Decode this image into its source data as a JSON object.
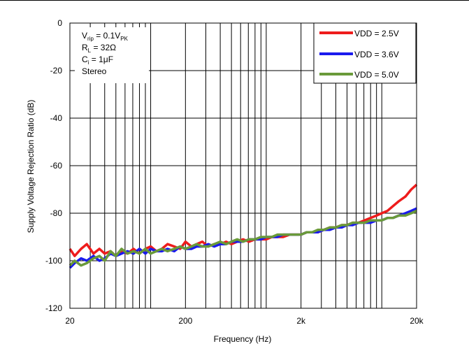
{
  "chart_data": {
    "type": "line",
    "title": "",
    "xlabel": "Frequency (Hz)",
    "ylabel": "Supply Voltage Rejection Ratio (dB)",
    "xscale": "log",
    "xlim": [
      20,
      20000
    ],
    "ylim": [
      -120,
      0
    ],
    "x_tick_labels": [
      "20",
      "200",
      "2k",
      "20k"
    ],
    "x_tick_values": [
      20,
      200,
      2000,
      20000
    ],
    "y_tick_labels": [
      "0",
      "-20",
      "-40",
      "-60",
      "-80",
      "-100",
      "-120"
    ],
    "y_tick_values": [
      0,
      -20,
      -40,
      -60,
      -80,
      -100,
      -120
    ],
    "grid": true,
    "legend_position": "top-right",
    "annotations": {
      "vrip_main": "V",
      "vrip_sub": "rip",
      "vrip_eq": " = 0.1V",
      "vrip_unit_sub": "PK",
      "rl_main": "R",
      "rl_sub": "L",
      "rl_eq": " = 32Ω",
      "ci_main": "C",
      "ci_sub": "i",
      "ci_eq": " = 1μF",
      "mode": "Stereo"
    },
    "series": [
      {
        "name": "VDD = 2.5V",
        "color": "#ee1c1c",
        "x": [
          20,
          22,
          25,
          28,
          32,
          36,
          40,
          45,
          50,
          56,
          63,
          71,
          80,
          90,
          100,
          112,
          125,
          140,
          160,
          180,
          200,
          225,
          250,
          280,
          315,
          355,
          400,
          450,
          500,
          560,
          630,
          710,
          800,
          900,
          1000,
          1120,
          1250,
          1400,
          1600,
          1800,
          2000,
          2240,
          2500,
          2800,
          3150,
          3550,
          4000,
          4500,
          5000,
          5600,
          6300,
          7100,
          8000,
          9000,
          10000,
          11200,
          12500,
          14000,
          16000,
          18000,
          20000
        ],
        "values": [
          -95,
          -98,
          -95,
          -93,
          -97,
          -95,
          -97,
          -96,
          -98,
          -96,
          -97,
          -95,
          -97,
          -95,
          -94,
          -96,
          -95,
          -93,
          -94,
          -95,
          -92,
          -94,
          -93,
          -92,
          -94,
          -93,
          -93,
          -92,
          -93,
          -92,
          -91,
          -92,
          -91,
          -91,
          -91,
          -90,
          -90,
          -90,
          -89,
          -89,
          -89,
          -88,
          -88,
          -88,
          -87,
          -86,
          -86,
          -85,
          -85,
          -84,
          -84,
          -83,
          -82,
          -81,
          -80,
          -79,
          -77,
          -75,
          -73,
          -70,
          -68
        ]
      },
      {
        "name": "VDD = 3.6V",
        "color": "#1a1aee",
        "x": [
          20,
          22,
          25,
          28,
          32,
          36,
          40,
          45,
          50,
          56,
          63,
          71,
          80,
          90,
          100,
          112,
          125,
          140,
          160,
          180,
          200,
          225,
          250,
          280,
          315,
          355,
          400,
          450,
          500,
          560,
          630,
          710,
          800,
          900,
          1000,
          1120,
          1250,
          1400,
          1600,
          1800,
          2000,
          2240,
          2500,
          2800,
          3150,
          3550,
          4000,
          4500,
          5000,
          5600,
          6300,
          7100,
          8000,
          9000,
          10000,
          11200,
          12500,
          14000,
          16000,
          18000,
          20000
        ],
        "values": [
          -103,
          -101,
          -99,
          -100,
          -98,
          -100,
          -99,
          -97,
          -98,
          -97,
          -96,
          -97,
          -95,
          -97,
          -95,
          -96,
          -96,
          -95,
          -96,
          -94,
          -95,
          -95,
          -94,
          -94,
          -93,
          -94,
          -93,
          -93,
          -92,
          -92,
          -92,
          -91,
          -91,
          -91,
          -90,
          -90,
          -90,
          -89,
          -89,
          -89,
          -89,
          -88,
          -88,
          -88,
          -87,
          -87,
          -86,
          -86,
          -85,
          -85,
          -84,
          -84,
          -84,
          -83,
          -83,
          -82,
          -82,
          -81,
          -80,
          -79,
          -78
        ]
      },
      {
        "name": "VDD = 5.0V",
        "color": "#6a9a3a",
        "x": [
          20,
          22,
          25,
          28,
          32,
          36,
          40,
          45,
          50,
          56,
          63,
          71,
          80,
          90,
          100,
          112,
          125,
          140,
          160,
          180,
          200,
          225,
          250,
          280,
          315,
          355,
          400,
          450,
          500,
          560,
          630,
          710,
          800,
          900,
          1000,
          1120,
          1250,
          1400,
          1600,
          1800,
          2000,
          2240,
          2500,
          2800,
          3150,
          3550,
          4000,
          4500,
          5000,
          5600,
          6300,
          7100,
          8000,
          9000,
          10000,
          11200,
          12500,
          14000,
          16000,
          18000,
          20000
        ],
        "values": [
          -102,
          -100,
          -102,
          -101,
          -99,
          -98,
          -100,
          -96,
          -98,
          -95,
          -97,
          -96,
          -97,
          -95,
          -97,
          -96,
          -95,
          -96,
          -95,
          -94,
          -95,
          -94,
          -93,
          -94,
          -94,
          -93,
          -92,
          -93,
          -92,
          -91,
          -92,
          -91,
          -91,
          -90,
          -90,
          -90,
          -89,
          -89,
          -89,
          -89,
          -89,
          -88,
          -88,
          -87,
          -87,
          -86,
          -86,
          -85,
          -85,
          -84,
          -84,
          -84,
          -83,
          -83,
          -83,
          -82,
          -82,
          -81,
          -81,
          -80,
          -79
        ]
      }
    ]
  }
}
